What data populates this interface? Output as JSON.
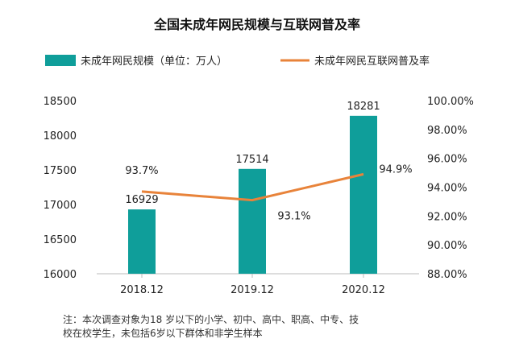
{
  "chart_data": {
    "type": "bar+line",
    "title": "全国未成年网民规模与互联网普及率",
    "categories": [
      "2018.12",
      "2019.12",
      "2020.12"
    ],
    "series": [
      {
        "name": "未成年网民规模（单位：万人）",
        "type": "bar",
        "axis": "left",
        "values": [
          16929,
          17514,
          18281
        ],
        "labels": [
          "16929",
          "17514",
          "18281"
        ]
      },
      {
        "name": "未成年网民互联网普及率",
        "type": "line",
        "axis": "right",
        "values": [
          93.7,
          93.1,
          94.9
        ],
        "labels": [
          "93.7%",
          "93.1%",
          "94.9%"
        ]
      }
    ],
    "left_axis": {
      "min": 16000,
      "max": 18500,
      "ticks": [
        "16000",
        "16500",
        "17000",
        "17500",
        "18000",
        "18500"
      ]
    },
    "right_axis": {
      "min": 88,
      "max": 100,
      "ticks": [
        "88.00%",
        "90.00%",
        "92.00%",
        "94.00%",
        "96.00%",
        "98.00%",
        "100.00%"
      ]
    },
    "legend_position": "top",
    "grid": false,
    "colors": {
      "bar": "#0f9e9a",
      "line": "#e8833a"
    }
  },
  "note": {
    "line1": "注：本次调查对象为18 岁以下的小学、初中、高中、职高、中专、技",
    "line2": "校在校学生，未包括6岁以下群体和非学生样本"
  }
}
